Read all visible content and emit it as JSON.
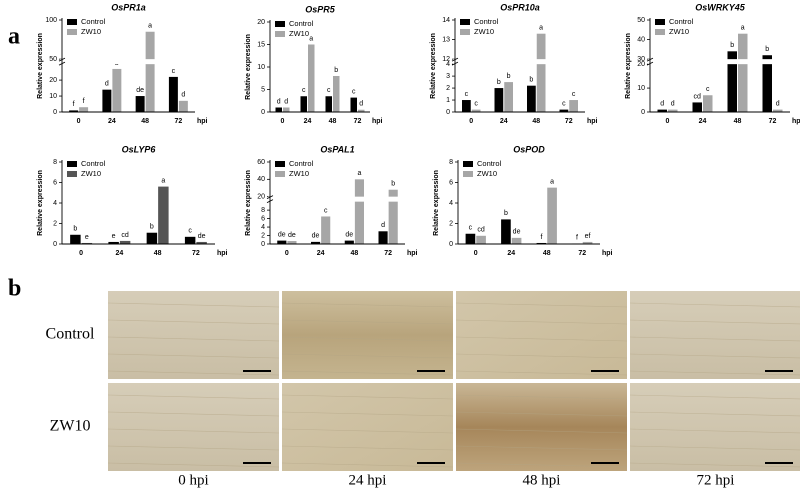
{
  "panel_labels": [
    "a",
    "b"
  ],
  "chart_data": [
    {
      "type": "bar",
      "title": "OsPR1a",
      "ylabel": "Relative expression",
      "xlabel": "hpi",
      "categories": [
        "0",
        "24",
        "48",
        "72"
      ],
      "series": [
        {
          "name": "Control",
          "color": "#000000",
          "values": [
            1,
            14,
            10,
            22
          ],
          "letters": [
            "f",
            "d",
            "de",
            "c"
          ]
        },
        {
          "name": "ZW10",
          "color": "#a6a6a6",
          "values": [
            3,
            27,
            85,
            7
          ],
          "letters": [
            "f",
            "b",
            "a",
            "d"
          ]
        }
      ],
      "ylim": [
        0,
        100
      ],
      "yticks": [
        0,
        10,
        20,
        50,
        100
      ],
      "ybreak": [
        30,
        50
      ],
      "legend": "upper left"
    },
    {
      "type": "bar",
      "title": "OsPR5",
      "ylabel": "Relative expression",
      "xlabel": "hpi",
      "categories": [
        "0",
        "24",
        "48",
        "72"
      ],
      "series": [
        {
          "name": "Control",
          "color": "#000000",
          "values": [
            1,
            3.5,
            3.5,
            3.2
          ],
          "letters": [
            "d",
            "c",
            "c",
            "c"
          ]
        },
        {
          "name": "ZW10",
          "color": "#a6a6a6",
          "values": [
            1,
            15,
            8,
            0.5
          ],
          "letters": [
            "d",
            "a",
            "b",
            "d"
          ]
        }
      ],
      "ylim": [
        0,
        20
      ],
      "yticks": [
        0,
        5,
        10,
        15,
        20
      ],
      "legend": "upper left"
    },
    {
      "type": "bar",
      "title": "OsPR10a",
      "ylabel": "Relative expression",
      "xlabel": "hpi",
      "categories": [
        "0",
        "24",
        "48",
        "72"
      ],
      "series": [
        {
          "name": "Control",
          "color": "#000000",
          "values": [
            1,
            2,
            2.2,
            0.2
          ],
          "letters": [
            "c",
            "b",
            "b",
            "c"
          ]
        },
        {
          "name": "ZW10",
          "color": "#a6a6a6",
          "values": [
            0.2,
            2.5,
            13.3,
            1
          ],
          "letters": [
            "c",
            "b",
            "a",
            "c"
          ]
        }
      ],
      "ylim": [
        0,
        14
      ],
      "yticks": [
        0,
        1,
        2,
        3,
        4,
        12,
        13,
        14
      ],
      "ybreak": [
        4,
        12
      ],
      "legend": "upper left"
    },
    {
      "type": "bar",
      "title": "OsWRKY45",
      "ylabel": "Relative expression",
      "xlabel": "hpi",
      "categories": [
        "0",
        "24",
        "48",
        "72"
      ],
      "series": [
        {
          "name": "Control",
          "color": "#000000",
          "values": [
            1,
            4,
            34,
            32
          ],
          "letters": [
            "d",
            "cd",
            "b",
            "b"
          ]
        },
        {
          "name": "ZW10",
          "color": "#a6a6a6",
          "values": [
            1,
            7,
            43,
            1
          ],
          "letters": [
            "d",
            "c",
            "a",
            "d"
          ]
        }
      ],
      "ylim": [
        0,
        50
      ],
      "yticks": [
        0,
        10,
        20,
        30,
        40,
        50
      ],
      "ybreak": [
        20,
        30
      ],
      "legend": "upper left"
    },
    {
      "type": "bar",
      "title": "OsLYP6",
      "ylabel": "Relative expression",
      "xlabel": "hpi",
      "categories": [
        "0",
        "24",
        "48",
        "72"
      ],
      "series": [
        {
          "name": "Control",
          "color": "#000000",
          "values": [
            0.9,
            0.2,
            1.1,
            0.7
          ],
          "letters": [
            "b",
            "e",
            "b",
            "c"
          ]
        },
        {
          "name": "ZW10",
          "color": "#555555",
          "values": [
            0.1,
            0.3,
            5.6,
            0.2
          ],
          "letters": [
            "e",
            "cd",
            "a",
            "de"
          ]
        }
      ],
      "ylim": [
        0,
        8
      ],
      "yticks": [
        0,
        2,
        4,
        6,
        8
      ],
      "legend": "upper left"
    },
    {
      "type": "bar",
      "title": "OsPAL1",
      "ylabel": "Relative expression",
      "xlabel": "hpi",
      "categories": [
        "0",
        "24",
        "48",
        "72"
      ],
      "series": [
        {
          "name": "Control",
          "color": "#000000",
          "values": [
            0.8,
            0.5,
            0.8,
            3
          ],
          "letters": [
            "de",
            "de",
            "de",
            "d"
          ]
        },
        {
          "name": "ZW10",
          "color": "#a6a6a6",
          "values": [
            0.7,
            6.5,
            40,
            28
          ],
          "letters": [
            "de",
            "c",
            "a",
            "b"
          ]
        }
      ],
      "ylim": [
        0,
        60
      ],
      "yticks": [
        0,
        2,
        4,
        6,
        8,
        20,
        40,
        60
      ],
      "ybreak": [
        10,
        20
      ],
      "legend": "upper left"
    },
    {
      "type": "bar",
      "title": "OsPOD",
      "ylabel": "Relative expression",
      "xlabel": "hpi",
      "categories": [
        "0",
        "24",
        "48",
        "72"
      ],
      "series": [
        {
          "name": "Control",
          "color": "#000000",
          "values": [
            1,
            2.4,
            0.1,
            0.05
          ],
          "letters": [
            "c",
            "b",
            "f",
            "f"
          ]
        },
        {
          "name": "ZW10",
          "color": "#a6a6a6",
          "values": [
            0.8,
            0.6,
            5.5,
            0.2
          ],
          "letters": [
            "cd",
            "de",
            "a",
            "ef"
          ]
        }
      ],
      "ylim": [
        0,
        8
      ],
      "yticks": [
        0,
        2,
        4,
        6,
        8
      ],
      "legend": "upper left"
    }
  ],
  "micrographs": {
    "rows": [
      "Control",
      "ZW10"
    ],
    "columns": [
      "0 hpi",
      "24 hpi",
      "48 hpi",
      "72 hpi"
    ]
  }
}
